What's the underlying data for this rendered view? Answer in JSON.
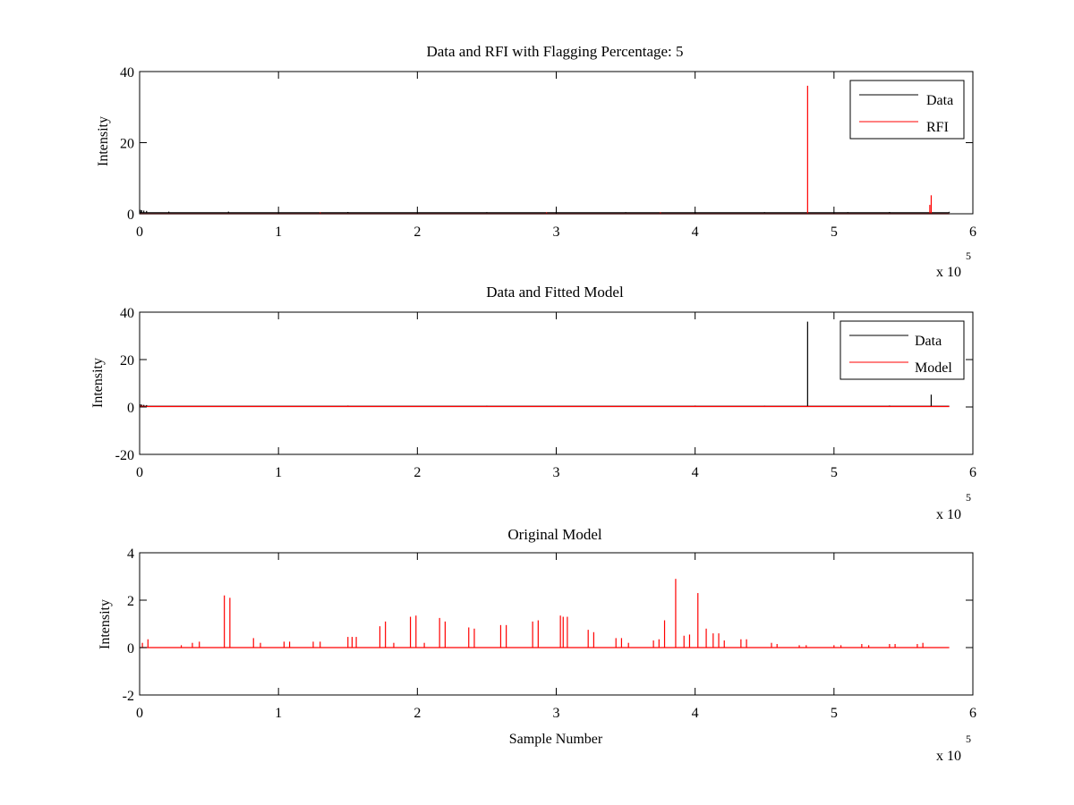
{
  "figure": {
    "background": "#ffffff",
    "axes_color": "#000000"
  },
  "chart_data": [
    {
      "type": "line",
      "title": "Data and RFI with Flagging Percentage: 5",
      "xlabel": "",
      "ylabel": "Intensity",
      "xlim": [
        0,
        600000
      ],
      "ylim": [
        0,
        40
      ],
      "xticks": [
        0,
        100000,
        200000,
        300000,
        400000,
        500000,
        600000
      ],
      "xtick_labels": [
        "0",
        "1",
        "2",
        "3",
        "4",
        "5",
        "6"
      ],
      "yticks": [
        0,
        20,
        40
      ],
      "ytick_labels": [
        "0",
        "20",
        "40"
      ],
      "x_exponent_label": "x 10",
      "x_exponent_power": "5",
      "legend": {
        "position": "top-right",
        "entries": [
          "Data",
          "RFI"
        ]
      },
      "series": [
        {
          "name": "Data",
          "color": "#000000",
          "baseline": 0.3,
          "x_end": 583000,
          "points": [
            [
              500,
              1.1
            ],
            [
              1500,
              1.0
            ],
            [
              3000,
              0.9
            ],
            [
              5000,
              0.8
            ],
            [
              21000,
              0.6
            ],
            [
              64000,
              0.6
            ],
            [
              150000,
              0.5
            ],
            [
              250000,
              0.45
            ],
            [
              300000,
              0.5
            ],
            [
              350000,
              0.45
            ],
            [
              400000,
              0.5
            ],
            [
              450000,
              0.45
            ],
            [
              510000,
              0.45
            ],
            [
              540000,
              0.5
            ],
            [
              583000,
              0.55
            ]
          ]
        },
        {
          "name": "RFI",
          "color": "#ff0000",
          "baseline": 0,
          "x_end": 583000,
          "points": [
            [
              481000,
              36
            ],
            [
              570000,
              5.2
            ],
            [
              569000,
              2.5
            ],
            [
              130000,
              0.4
            ],
            [
              293000,
              0.4
            ],
            [
              375000,
              0.4
            ]
          ]
        }
      ]
    },
    {
      "type": "line",
      "title": "Data and Fitted Model",
      "xlabel": "",
      "ylabel": "Intensity",
      "xlim": [
        0,
        600000
      ],
      "ylim": [
        -20,
        40
      ],
      "xticks": [
        0,
        100000,
        200000,
        300000,
        400000,
        500000,
        600000
      ],
      "xtick_labels": [
        "0",
        "1",
        "2",
        "3",
        "4",
        "5",
        "6"
      ],
      "yticks": [
        -20,
        0,
        20,
        40
      ],
      "ytick_labels": [
        "-20",
        "0",
        "20",
        "40"
      ],
      "x_exponent_label": "x 10",
      "x_exponent_power": "5",
      "legend": {
        "position": "top-right",
        "entries": [
          "Data",
          "Model"
        ]
      },
      "series": [
        {
          "name": "Data",
          "color": "#000000",
          "baseline": 0.3,
          "x_end": 583000,
          "points": [
            [
              500,
              1.1
            ],
            [
              1500,
              1.0
            ],
            [
              3000,
              0.9
            ],
            [
              5000,
              0.8
            ],
            [
              481000,
              36
            ],
            [
              570000,
              5.2
            ],
            [
              150000,
              0.6
            ],
            [
              250000,
              0.5
            ],
            [
              400000,
              0.6
            ],
            [
              450000,
              0.5
            ],
            [
              540000,
              0.6
            ]
          ]
        },
        {
          "name": "Model",
          "color": "#ff0000",
          "baseline": 0.2,
          "x_end": 583000,
          "points": [
            [
              500,
              0.6
            ],
            [
              2000,
              0.5
            ],
            [
              150000,
              0.5
            ],
            [
              300000,
              0.5
            ],
            [
              400000,
              0.5
            ]
          ]
        }
      ]
    },
    {
      "type": "line",
      "title": "Original Model",
      "xlabel": "Sample Number",
      "ylabel": "Intensity",
      "xlim": [
        0,
        600000
      ],
      "ylim": [
        -2,
        4
      ],
      "xticks": [
        0,
        100000,
        200000,
        300000,
        400000,
        500000,
        600000
      ],
      "xtick_labels": [
        "0",
        "1",
        "2",
        "3",
        "4",
        "5",
        "6"
      ],
      "yticks": [
        -2,
        0,
        2,
        4
      ],
      "ytick_labels": [
        "-2",
        "0",
        "2",
        "4"
      ],
      "x_exponent_label": "x 10",
      "x_exponent_power": "5",
      "series": [
        {
          "name": "",
          "color": "#ff0000",
          "baseline": 0,
          "x_end": 583000,
          "points": [
            [
              2000,
              0.2
            ],
            [
              6000,
              0.35
            ],
            [
              30000,
              0.1
            ],
            [
              38000,
              0.2
            ],
            [
              43000,
              0.25
            ],
            [
              61000,
              2.2
            ],
            [
              65000,
              2.1
            ],
            [
              82000,
              0.4
            ],
            [
              87000,
              0.2
            ],
            [
              104000,
              0.25
            ],
            [
              108000,
              0.25
            ],
            [
              125000,
              0.25
            ],
            [
              130000,
              0.25
            ],
            [
              150000,
              0.45
            ],
            [
              153000,
              0.45
            ],
            [
              156000,
              0.45
            ],
            [
              173000,
              0.9
            ],
            [
              177000,
              1.1
            ],
            [
              183000,
              0.2
            ],
            [
              195000,
              1.3
            ],
            [
              199000,
              1.35
            ],
            [
              205000,
              0.2
            ],
            [
              216000,
              1.25
            ],
            [
              220000,
              1.1
            ],
            [
              237000,
              0.85
            ],
            [
              241000,
              0.8
            ],
            [
              260000,
              0.95
            ],
            [
              264000,
              0.95
            ],
            [
              283000,
              1.1
            ],
            [
              287000,
              1.15
            ],
            [
              303000,
              1.35
            ],
            [
              305000,
              1.3
            ],
            [
              308000,
              1.3
            ],
            [
              323000,
              0.75
            ],
            [
              327000,
              0.65
            ],
            [
              343000,
              0.4
            ],
            [
              347000,
              0.4
            ],
            [
              352000,
              0.2
            ],
            [
              370000,
              0.3
            ],
            [
              374000,
              0.35
            ],
            [
              378000,
              1.15
            ],
            [
              386000,
              2.9
            ],
            [
              392000,
              0.5
            ],
            [
              396000,
              0.55
            ],
            [
              402000,
              2.3
            ],
            [
              408000,
              0.8
            ],
            [
              413000,
              0.6
            ],
            [
              417000,
              0.6
            ],
            [
              421000,
              0.3
            ],
            [
              433000,
              0.35
            ],
            [
              437000,
              0.35
            ],
            [
              455000,
              0.2
            ],
            [
              459000,
              0.15
            ],
            [
              475000,
              0.1
            ],
            [
              480000,
              0.1
            ],
            [
              500000,
              0.1
            ],
            [
              505000,
              0.1
            ],
            [
              520000,
              0.15
            ],
            [
              525000,
              0.1
            ],
            [
              540000,
              0.15
            ],
            [
              544000,
              0.15
            ],
            [
              560000,
              0.15
            ],
            [
              564000,
              0.2
            ]
          ]
        }
      ]
    }
  ]
}
